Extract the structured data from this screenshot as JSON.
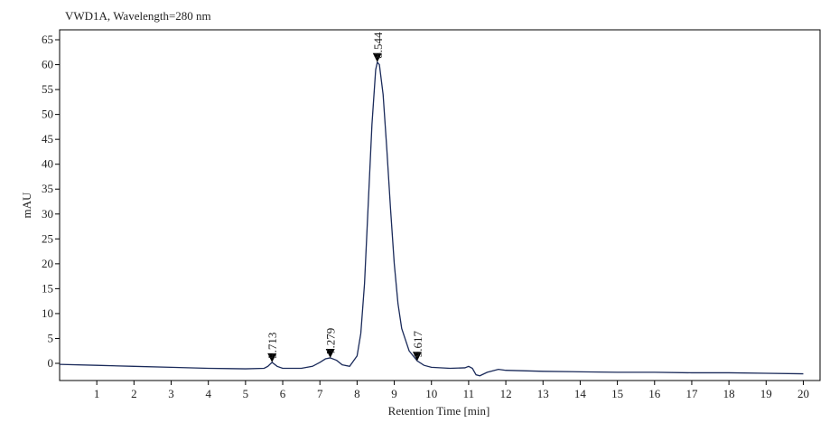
{
  "chart_data": {
    "type": "line",
    "title": "VWD1A, Wavelength=280 nm",
    "xlabel": "Retention Time [min]",
    "ylabel": "mAU",
    "xlim": [
      0,
      20.45
    ],
    "ylim": [
      -3.45,
      67
    ],
    "xticks": [
      1,
      2,
      3,
      4,
      5,
      6,
      7,
      8,
      9,
      10,
      11,
      12,
      13,
      14,
      15,
      16,
      17,
      18,
      19,
      20
    ],
    "yticks": [
      0,
      5,
      10,
      15,
      20,
      25,
      30,
      35,
      40,
      45,
      50,
      55,
      60,
      65
    ],
    "peaks": [
      5.713,
      7.279,
      8.544,
      9.617
    ],
    "series": [
      {
        "color": "#1a2a5a",
        "x": [
          0,
          1,
          2,
          3,
          4,
          5,
          5.5,
          5.6,
          5.713,
          5.85,
          6,
          6.5,
          6.8,
          7.0,
          7.15,
          7.279,
          7.45,
          7.6,
          7.8,
          8.0,
          8.1,
          8.2,
          8.3,
          8.4,
          8.5,
          8.544,
          8.6,
          8.7,
          8.8,
          8.9,
          9.0,
          9.1,
          9.2,
          9.4,
          9.617,
          9.8,
          10,
          10.5,
          10.9,
          11.0,
          11.1,
          11.2,
          11.3,
          11.5,
          11.8,
          12,
          13,
          14,
          15,
          16,
          17,
          18,
          19,
          20
        ],
        "values": [
          -0.2,
          -0.4,
          -0.6,
          -0.8,
          -1.0,
          -1.1,
          -1.0,
          -0.6,
          0.2,
          -0.6,
          -1.0,
          -1.0,
          -0.6,
          0.2,
          0.9,
          1.1,
          0.6,
          -0.3,
          -0.6,
          1.5,
          6,
          16,
          32,
          48,
          59,
          60.5,
          60,
          54,
          43,
          31,
          20,
          12,
          7,
          2.5,
          0.5,
          -0.4,
          -0.8,
          -1.0,
          -0.9,
          -0.6,
          -1.0,
          -2.3,
          -2.5,
          -1.8,
          -1.2,
          -1.4,
          -1.6,
          -1.7,
          -1.8,
          -1.8,
          -1.9,
          -1.9,
          -2.0,
          -2.1
        ]
      }
    ]
  }
}
